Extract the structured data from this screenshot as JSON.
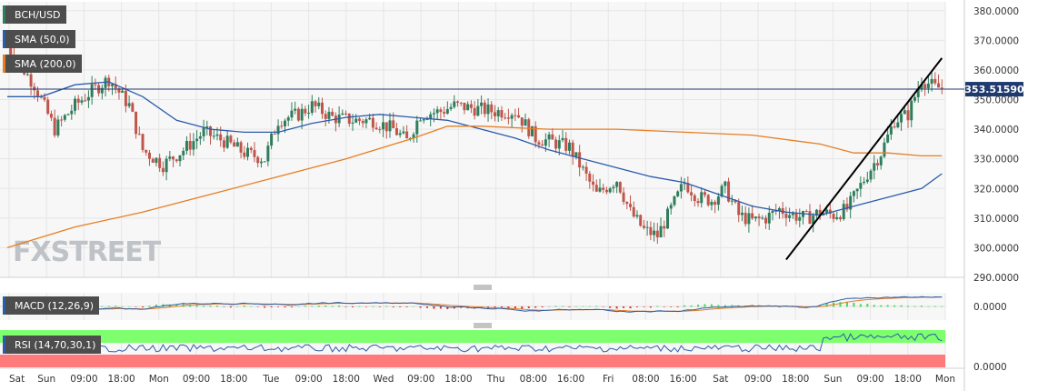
{
  "chart_data": {
    "type": "candlestick",
    "symbol": "BCH/USD",
    "current_price_label": "353.51590",
    "price_ticks": [
      "380.0000",
      "370.0000",
      "360.0000",
      "350.0000",
      "340.0000",
      "330.0000",
      "320.0000",
      "310.0000",
      "300.0000",
      "290.0000"
    ],
    "price_range": [
      290,
      383
    ],
    "time_labels": [
      "Sat",
      "Sun",
      "09:00",
      "18:00",
      "Mon",
      "09:00",
      "18:00",
      "Tue",
      "09:00",
      "18:00",
      "Wed",
      "09:00",
      "18:00",
      "Thu",
      "08:00",
      "16:00",
      "Fri",
      "08:00",
      "16:00",
      "Sat",
      "09:00",
      "18:00",
      "Sun",
      "09:00",
      "18:00",
      "Mon"
    ],
    "close_anchors": [
      [
        0,
        368
      ],
      [
        8,
        355
      ],
      [
        14,
        340
      ],
      [
        20,
        348
      ],
      [
        24,
        352
      ],
      [
        30,
        357
      ],
      [
        36,
        348
      ],
      [
        40,
        333
      ],
      [
        46,
        328
      ],
      [
        52,
        333
      ],
      [
        58,
        339
      ],
      [
        64,
        336
      ],
      [
        70,
        332
      ],
      [
        76,
        330
      ],
      [
        80,
        343
      ],
      [
        86,
        345
      ],
      [
        90,
        348
      ],
      [
        96,
        344
      ],
      [
        102,
        343
      ],
      [
        108,
        343
      ],
      [
        114,
        340
      ],
      [
        118,
        336
      ],
      [
        122,
        345
      ],
      [
        128,
        346
      ],
      [
        132,
        348
      ],
      [
        138,
        347
      ],
      [
        144,
        346
      ],
      [
        150,
        346
      ],
      [
        156,
        337
      ],
      [
        160,
        336
      ],
      [
        166,
        334
      ],
      [
        170,
        326
      ],
      [
        174,
        318
      ],
      [
        180,
        323
      ],
      [
        184,
        312
      ],
      [
        188,
        306
      ],
      [
        192,
        304
      ],
      [
        196,
        313
      ],
      [
        200,
        322
      ],
      [
        204,
        317
      ],
      [
        208,
        316
      ],
      [
        212,
        320
      ],
      [
        216,
        311
      ],
      [
        220,
        309
      ],
      [
        224,
        310
      ],
      [
        228,
        313
      ],
      [
        232,
        311
      ],
      [
        236,
        310
      ],
      [
        240,
        312
      ],
      [
        244,
        311
      ],
      [
        248,
        313
      ],
      [
        254,
        325
      ],
      [
        258,
        332
      ],
      [
        262,
        343
      ],
      [
        266,
        345
      ],
      [
        270,
        357
      ],
      [
        274,
        354
      ]
    ],
    "series": [
      {
        "name": "SMA (50,0)",
        "color": "#2a5caa",
        "points": [
          [
            0,
            351
          ],
          [
            10,
            351
          ],
          [
            20,
            355
          ],
          [
            30,
            356
          ],
          [
            40,
            351
          ],
          [
            50,
            343
          ],
          [
            60,
            340
          ],
          [
            70,
            339
          ],
          [
            80,
            339
          ],
          [
            90,
            342
          ],
          [
            100,
            344
          ],
          [
            110,
            345
          ],
          [
            120,
            344
          ],
          [
            130,
            343
          ],
          [
            140,
            340
          ],
          [
            150,
            337
          ],
          [
            160,
            333
          ],
          [
            170,
            330
          ],
          [
            180,
            327
          ],
          [
            190,
            324
          ],
          [
            200,
            322
          ],
          [
            210,
            318
          ],
          [
            220,
            314
          ],
          [
            230,
            312
          ],
          [
            240,
            311
          ],
          [
            250,
            314
          ],
          [
            260,
            317
          ],
          [
            270,
            320
          ],
          [
            276,
            325
          ]
        ]
      },
      {
        "name": "SMA (200,0)",
        "color": "#e67e22",
        "points": [
          [
            0,
            300
          ],
          [
            20,
            307
          ],
          [
            40,
            312
          ],
          [
            60,
            318
          ],
          [
            80,
            324
          ],
          [
            100,
            330
          ],
          [
            120,
            337
          ],
          [
            130,
            341
          ],
          [
            140,
            341
          ],
          [
            160,
            340
          ],
          [
            180,
            340
          ],
          [
            200,
            339
          ],
          [
            220,
            338
          ],
          [
            240,
            335
          ],
          [
            250,
            332
          ],
          [
            260,
            332
          ],
          [
            270,
            331
          ],
          [
            276,
            331
          ]
        ]
      }
    ],
    "trendline": {
      "from": [
        230,
        296
      ],
      "to": [
        276,
        364
      ],
      "color": "#000000"
    },
    "macd": {
      "label": "MACD (12,26,9)",
      "zero_label": "0.0000"
    },
    "rsi": {
      "label": "RSI (14,70,30,1)",
      "zero_label": "0.0000"
    },
    "watermark": "FXSTREET"
  }
}
